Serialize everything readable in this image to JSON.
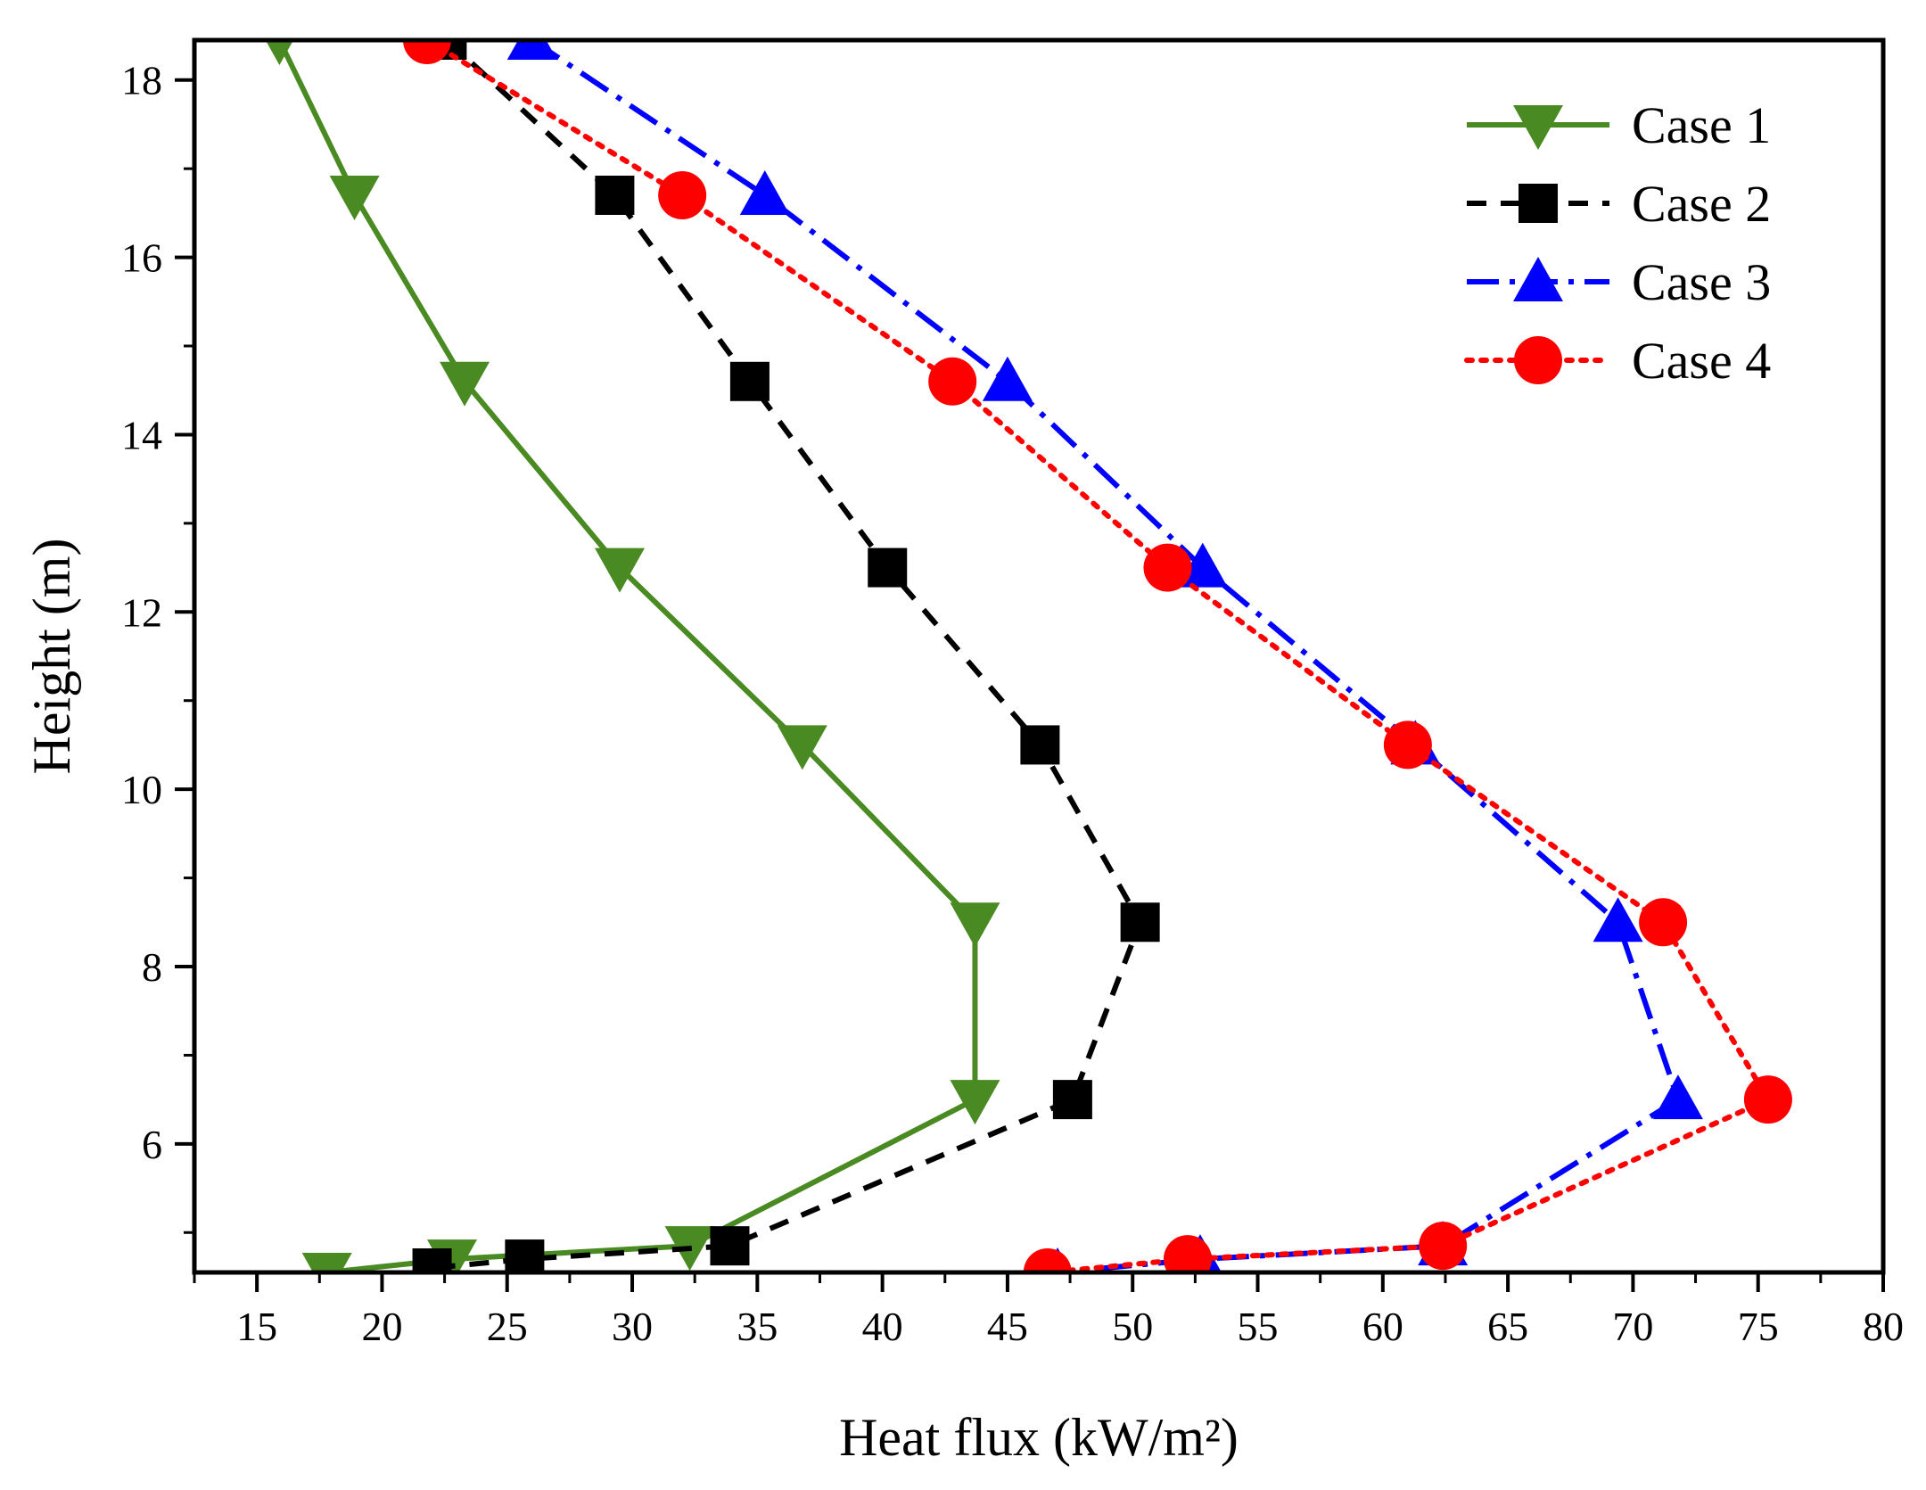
{
  "chart_data": {
    "type": "line",
    "title": "",
    "xlabel": "Heat flux (kW/m²)",
    "ylabel": "Height (m)",
    "xlim": [
      12.5,
      80
    ],
    "ylim": [
      4.55,
      18.45
    ],
    "x_ticks": [
      15,
      20,
      25,
      30,
      35,
      40,
      45,
      50,
      55,
      60,
      65,
      70,
      75,
      80
    ],
    "y_ticks": [
      6,
      8,
      10,
      12,
      14,
      16,
      18
    ],
    "grid": false,
    "legend_position": "top-right",
    "series": [
      {
        "name": "Case 1",
        "color": "#4a8a22",
        "line_style": "solid",
        "marker": "triangle-down",
        "points": [
          {
            "x": 15.9,
            "y": 18.45
          },
          {
            "x": 18.9,
            "y": 16.7
          },
          {
            "x": 23.3,
            "y": 14.6
          },
          {
            "x": 29.5,
            "y": 12.5
          },
          {
            "x": 36.8,
            "y": 10.5
          },
          {
            "x": 43.7,
            "y": 8.5
          },
          {
            "x": 43.7,
            "y": 6.5
          },
          {
            "x": 32.3,
            "y": 4.85
          },
          {
            "x": 22.8,
            "y": 4.7
          },
          {
            "x": 17.8,
            "y": 4.55
          }
        ]
      },
      {
        "name": "Case 2",
        "color": "#000000",
        "line_style": "dashed",
        "marker": "square",
        "points": [
          {
            "x": 22.6,
            "y": 18.45
          },
          {
            "x": 29.3,
            "y": 16.7
          },
          {
            "x": 34.7,
            "y": 14.6
          },
          {
            "x": 40.2,
            "y": 12.5
          },
          {
            "x": 46.3,
            "y": 10.5
          },
          {
            "x": 50.3,
            "y": 8.5
          },
          {
            "x": 47.6,
            "y": 6.5
          },
          {
            "x": 33.9,
            "y": 4.85
          },
          {
            "x": 25.7,
            "y": 4.7
          },
          {
            "x": 22.0,
            "y": 4.6
          }
        ]
      },
      {
        "name": "Case 3",
        "color": "#0000ff",
        "line_style": "dash-dot",
        "marker": "triangle-up",
        "points": [
          {
            "x": 26.0,
            "y": 18.45
          },
          {
            "x": 35.3,
            "y": 16.7
          },
          {
            "x": 45.0,
            "y": 14.6
          },
          {
            "x": 52.8,
            "y": 12.5
          },
          {
            "x": 61.3,
            "y": 10.5
          },
          {
            "x": 69.4,
            "y": 8.5
          },
          {
            "x": 71.8,
            "y": 6.5
          },
          {
            "x": 62.4,
            "y": 4.85
          },
          {
            "x": 52.7,
            "y": 4.7
          },
          {
            "x": 47.0,
            "y": 4.55
          }
        ]
      },
      {
        "name": "Case 4",
        "color": "#ff0000",
        "line_style": "dotted",
        "marker": "circle",
        "points": [
          {
            "x": 21.8,
            "y": 18.45
          },
          {
            "x": 32.0,
            "y": 16.7
          },
          {
            "x": 42.8,
            "y": 14.6
          },
          {
            "x": 51.4,
            "y": 12.5
          },
          {
            "x": 61.0,
            "y": 10.5
          },
          {
            "x": 71.2,
            "y": 8.5
          },
          {
            "x": 75.4,
            "y": 6.5
          },
          {
            "x": 62.4,
            "y": 4.85
          },
          {
            "x": 52.2,
            "y": 4.7
          },
          {
            "x": 46.6,
            "y": 4.55
          }
        ]
      }
    ]
  }
}
